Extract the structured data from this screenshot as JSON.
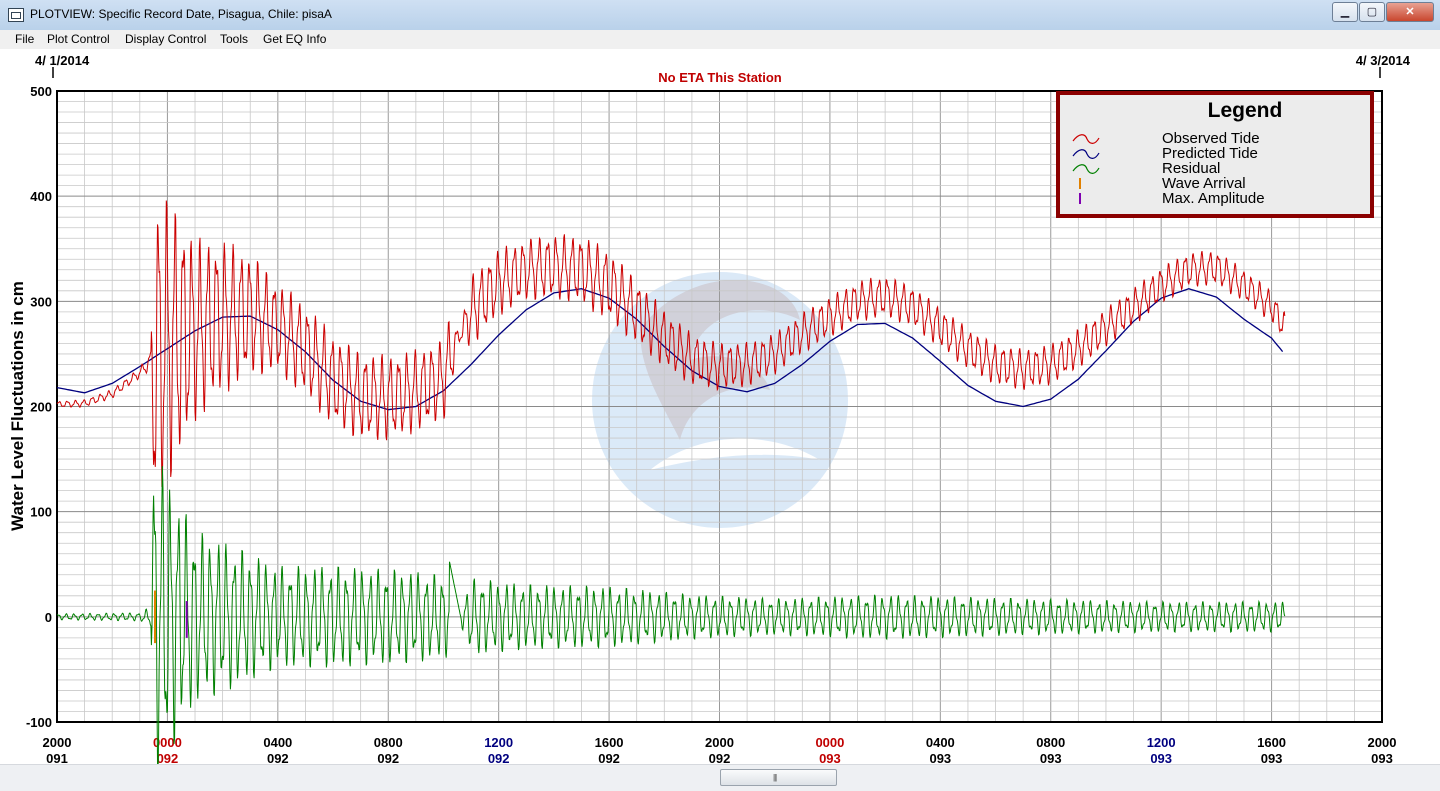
{
  "window": {
    "title": "PLOTVIEW: Specific Record Date, Pisagua, Chile: pisaA",
    "buttons": {
      "minimize": "▁",
      "maximize": "▢",
      "close": "✕"
    }
  },
  "menu": [
    "File",
    "Plot Control",
    "Display Control",
    "Tools",
    "Get EQ Info"
  ],
  "chart_data": {
    "type": "line",
    "date_start": "4/ 1/2014",
    "date_end": "4/ 3/2014",
    "eta_note": "No ETA This Station",
    "ylabel": "Water Level Fluctuations in cm",
    "ylim": [
      -100,
      500
    ],
    "y_ticks": [
      "500",
      "400",
      "300",
      "200",
      "100",
      "0",
      "-100"
    ],
    "x_ticks": [
      {
        "time": "2000",
        "day": "091",
        "color": "#000000"
      },
      {
        "time": "0000",
        "day": "092",
        "color": "#c00000"
      },
      {
        "time": "0400",
        "day": "092",
        "color": "#000000"
      },
      {
        "time": "0800",
        "day": "092",
        "color": "#000000"
      },
      {
        "time": "1200",
        "day": "092",
        "color": "#00007f"
      },
      {
        "time": "1600",
        "day": "092",
        "color": "#000000"
      },
      {
        "time": "2000",
        "day": "092",
        "color": "#000000"
      },
      {
        "time": "0000",
        "day": "093",
        "color": "#c00000"
      },
      {
        "time": "0400",
        "day": "093",
        "color": "#000000"
      },
      {
        "time": "0800",
        "day": "093",
        "color": "#000000"
      },
      {
        "time": "1200",
        "day": "093",
        "color": "#00007f"
      },
      {
        "time": "1600",
        "day": "093",
        "color": "#000000"
      },
      {
        "time": "2000",
        "day": "093",
        "color": "#000000"
      }
    ],
    "legend": {
      "title": "Legend",
      "position": "top-right",
      "items": [
        {
          "label": "Observed Tide",
          "color": "#cc0000"
        },
        {
          "label": "Predicted Tide",
          "color": "#00007f"
        },
        {
          "label": "Residual",
          "color": "#008000"
        },
        {
          "label": "Wave Arrival",
          "color": "#e08000"
        },
        {
          "label": "Max. Amplitude",
          "color": "#7f00b0"
        }
      ]
    },
    "series": [
      {
        "name": "Predicted Tide",
        "color": "#00007f",
        "points": [
          [
            0,
            218
          ],
          [
            1,
            213
          ],
          [
            2,
            222
          ],
          [
            3,
            238
          ],
          [
            4,
            255
          ],
          [
            5,
            272
          ],
          [
            6,
            285
          ],
          [
            7,
            286
          ],
          [
            8,
            273
          ],
          [
            9,
            252
          ],
          [
            10,
            225
          ],
          [
            11,
            205
          ],
          [
            12,
            197
          ],
          [
            13,
            200
          ],
          [
            14,
            215
          ],
          [
            15,
            240
          ],
          [
            16,
            268
          ],
          [
            17,
            292
          ],
          [
            18,
            308
          ],
          [
            19,
            312
          ],
          [
            20,
            303
          ],
          [
            21,
            283
          ],
          [
            22,
            257
          ],
          [
            23,
            234
          ],
          [
            24,
            219
          ],
          [
            25,
            214
          ],
          [
            26,
            222
          ],
          [
            27,
            240
          ],
          [
            28,
            262
          ],
          [
            29,
            278
          ],
          [
            30,
            279
          ],
          [
            31,
            265
          ],
          [
            32,
            243
          ],
          [
            33,
            220
          ],
          [
            34,
            205
          ],
          [
            35,
            200
          ],
          [
            36,
            207
          ],
          [
            37,
            226
          ],
          [
            38,
            253
          ],
          [
            39,
            281
          ],
          [
            40,
            303
          ],
          [
            41,
            312
          ],
          [
            42,
            304
          ],
          [
            43,
            283
          ],
          [
            44,
            265
          ],
          [
            44.5,
            249
          ]
        ]
      },
      {
        "name": "Observed Tide",
        "color": "#cc0000",
        "mean": [
          [
            0,
            202
          ],
          [
            1,
            203
          ],
          [
            2,
            212
          ],
          [
            3,
            232
          ],
          [
            3.4,
            244
          ],
          [
            4,
            262
          ],
          [
            5,
            272
          ],
          [
            6,
            285
          ],
          [
            7,
            288
          ],
          [
            8,
            275
          ],
          [
            9,
            254
          ],
          [
            10,
            225
          ],
          [
            11,
            210
          ],
          [
            12,
            208
          ],
          [
            13,
            215
          ],
          [
            14,
            225
          ],
          [
            14.2,
            245
          ],
          [
            15,
            290
          ],
          [
            16,
            318
          ],
          [
            17,
            330
          ],
          [
            18,
            333
          ],
          [
            19,
            330
          ],
          [
            20,
            315
          ],
          [
            21,
            290
          ],
          [
            22,
            265
          ],
          [
            23,
            245
          ],
          [
            24,
            238
          ],
          [
            25,
            240
          ],
          [
            26,
            250
          ],
          [
            27,
            270
          ],
          [
            28,
            285
          ],
          [
            29,
            300
          ],
          [
            30,
            305
          ],
          [
            31,
            295
          ],
          [
            32,
            275
          ],
          [
            33,
            255
          ],
          [
            34,
            240
          ],
          [
            35,
            235
          ],
          [
            36,
            240
          ],
          [
            37,
            255
          ],
          [
            38,
            275
          ],
          [
            39,
            295
          ],
          [
            40,
            315
          ],
          [
            41,
            330
          ],
          [
            42,
            332
          ],
          [
            43,
            315
          ],
          [
            44,
            295
          ],
          [
            44.5,
            275
          ]
        ],
        "oscillation": [
          [
            0,
            3
          ],
          [
            3,
            5
          ],
          [
            3.4,
            10
          ],
          [
            3.5,
            160
          ],
          [
            4.5,
            120
          ],
          [
            5,
            90
          ],
          [
            6,
            75
          ],
          [
            8,
            45
          ],
          [
            10,
            45
          ],
          [
            13,
            40
          ],
          [
            14.2,
            40
          ],
          [
            14.6,
            5
          ],
          [
            15,
            35
          ],
          [
            17,
            30
          ],
          [
            20,
            35
          ],
          [
            23,
            25
          ],
          [
            26,
            20
          ],
          [
            30,
            20
          ],
          [
            35,
            20
          ],
          [
            40,
            18
          ],
          [
            44.5,
            15
          ]
        ]
      },
      {
        "name": "Residual",
        "color": "#008000",
        "envelope": [
          [
            0,
            3
          ],
          [
            3,
            4
          ],
          [
            3.4,
            10
          ],
          [
            3.5,
            170
          ],
          [
            4.5,
            110
          ],
          [
            5,
            85
          ],
          [
            6,
            75
          ],
          [
            8,
            50
          ],
          [
            10,
            50
          ],
          [
            13,
            45
          ],
          [
            14.2,
            40
          ],
          [
            14.6,
            5
          ],
          [
            15,
            38
          ],
          [
            17,
            32
          ],
          [
            20,
            30
          ],
          [
            23,
            22
          ],
          [
            26,
            18
          ],
          [
            30,
            22
          ],
          [
            35,
            18
          ],
          [
            40,
            15
          ],
          [
            44.5,
            15
          ]
        ]
      },
      {
        "name": "Wave Arrival",
        "color": "#e08000",
        "x": 3.55,
        "range": [
          -25,
          25
        ]
      },
      {
        "name": "Max. Amplitude",
        "color": "#7f00b0",
        "x": 4.7,
        "range": [
          -20,
          15
        ]
      }
    ]
  }
}
